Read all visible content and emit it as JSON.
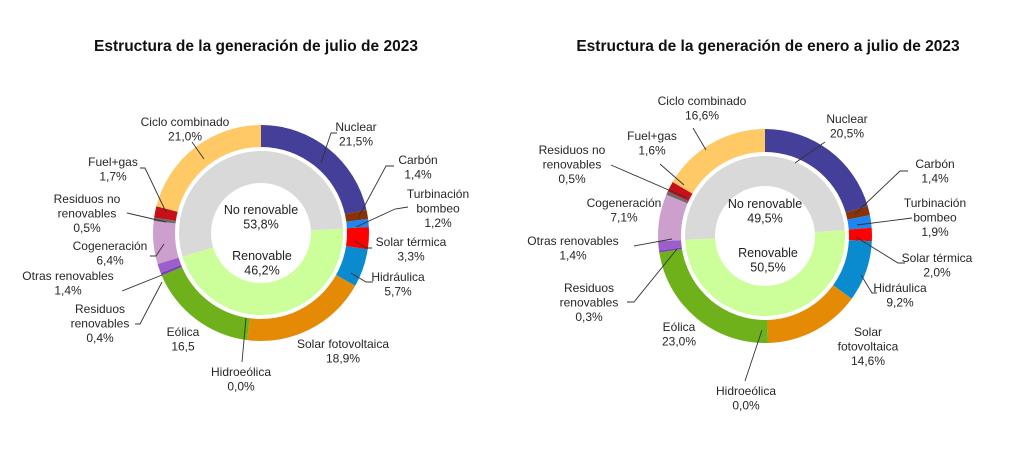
{
  "chart_data": [
    {
      "type": "pie",
      "subtype": "nested-donut",
      "title": "Estructura de la generación de julio de 2023",
      "inner": [
        {
          "name": "No renovable",
          "value": 53.8,
          "label": "53,8%",
          "color": "#d9d9d9"
        },
        {
          "name": "Renovable",
          "value": 46.2,
          "label": "46,2%",
          "color": "#ccff99"
        }
      ],
      "outer": [
        {
          "name": "Nuclear",
          "value": 21.5,
          "label": "21,5%",
          "color": "#443f98",
          "group": "No renovable"
        },
        {
          "name": "Carbón",
          "value": 1.4,
          "label": "1,4%",
          "color": "#8b3107",
          "group": "No renovable"
        },
        {
          "name": "Turbinación bombeo",
          "value": 1.2,
          "label": "1,2%",
          "color": "#1e86f0",
          "group": "No renovable"
        },
        {
          "name": "Solar térmica",
          "value": 3.3,
          "label": "3,3%",
          "color": "#ff0000",
          "group": "Renovable"
        },
        {
          "name": "Hidráulica",
          "value": 5.7,
          "label": "5,7%",
          "color": "#0a8bd0",
          "group": "Renovable"
        },
        {
          "name": "Solar fotovoltaica",
          "value": 18.9,
          "label": "18,9%",
          "color": "#e58a04",
          "group": "Renovable"
        },
        {
          "name": "Hidroeólica",
          "value": 0.0,
          "label": "0,0%",
          "color": "#6b8e23",
          "group": "Renovable"
        },
        {
          "name": "Eólica",
          "value": 16.5,
          "label": "16,5",
          "color": "#6eb11b",
          "group": "Renovable"
        },
        {
          "name": "Residuos renovables",
          "value": 0.4,
          "label": "0,4%",
          "color": "#7d3fb5",
          "group": "Renovable"
        },
        {
          "name": "Otras renovables",
          "value": 1.4,
          "label": "1,4%",
          "color": "#9a5fcc",
          "group": "Renovable"
        },
        {
          "name": "Cogeneración",
          "value": 6.4,
          "label": "6,4%",
          "color": "#cc9fcc",
          "group": "No renovable"
        },
        {
          "name": "Residuos no renovables",
          "value": 0.5,
          "label": "0,5%",
          "color": "#6b6b6b",
          "group": "No renovable"
        },
        {
          "name": "Fuel+gas",
          "value": 1.7,
          "label": "1,7%",
          "color": "#c8101a",
          "group": "No renovable"
        },
        {
          "name": "Ciclo combinado",
          "value": 21.0,
          "label": "21,0%",
          "color": "#ffc966",
          "group": "No renovable"
        }
      ]
    },
    {
      "type": "pie",
      "subtype": "nested-donut",
      "title": "Estructura de la generación de enero a julio de 2023",
      "inner": [
        {
          "name": "No renovable",
          "value": 49.5,
          "label": "49,5%",
          "color": "#d9d9d9"
        },
        {
          "name": "Renovable",
          "value": 50.5,
          "label": "50,5%",
          "color": "#ccff99"
        }
      ],
      "outer": [
        {
          "name": "Nuclear",
          "value": 20.5,
          "label": "20,5%",
          "color": "#443f98",
          "group": "No renovable"
        },
        {
          "name": "Carbón",
          "value": 1.4,
          "label": "1,4%",
          "color": "#8b3107",
          "group": "No renovable"
        },
        {
          "name": "Turbinación bombeo",
          "value": 1.9,
          "label": "1,9%",
          "color": "#1e86f0",
          "group": "No renovable"
        },
        {
          "name": "Solar térmica",
          "value": 2.0,
          "label": "2,0%",
          "color": "#ff0000",
          "group": "Renovable"
        },
        {
          "name": "Hidráulica",
          "value": 9.2,
          "label": "9,2%",
          "color": "#0a8bd0",
          "group": "Renovable"
        },
        {
          "name": "Solar fotovoltaica",
          "value": 14.6,
          "label": "14,6%",
          "color": "#e58a04",
          "group": "Renovable"
        },
        {
          "name": "Hidroeólica",
          "value": 0.0,
          "label": "0,0%",
          "color": "#6b8e23",
          "group": "Renovable"
        },
        {
          "name": "Eólica",
          "value": 23.0,
          "label": "23,0%",
          "color": "#6eb11b",
          "group": "Renovable"
        },
        {
          "name": "Residuos renovables",
          "value": 0.3,
          "label": "0,3%",
          "color": "#7d3fb5",
          "group": "Renovable"
        },
        {
          "name": "Otras renovables",
          "value": 1.4,
          "label": "1,4%",
          "color": "#9a5fcc",
          "group": "Renovable"
        },
        {
          "name": "Cogeneración",
          "value": 7.1,
          "label": "7,1%",
          "color": "#cc9fcc",
          "group": "No renovable"
        },
        {
          "name": "Residuos no renovables",
          "value": 0.5,
          "label": "0,5%",
          "color": "#6b6b6b",
          "group": "No renovable"
        },
        {
          "name": "Fuel+gas",
          "value": 1.6,
          "label": "1,6%",
          "color": "#c8101a",
          "group": "No renovable"
        },
        {
          "name": "Ciclo combinado",
          "value": 16.6,
          "label": "16,6%",
          "color": "#ffc966",
          "group": "No renovable"
        }
      ]
    }
  ]
}
